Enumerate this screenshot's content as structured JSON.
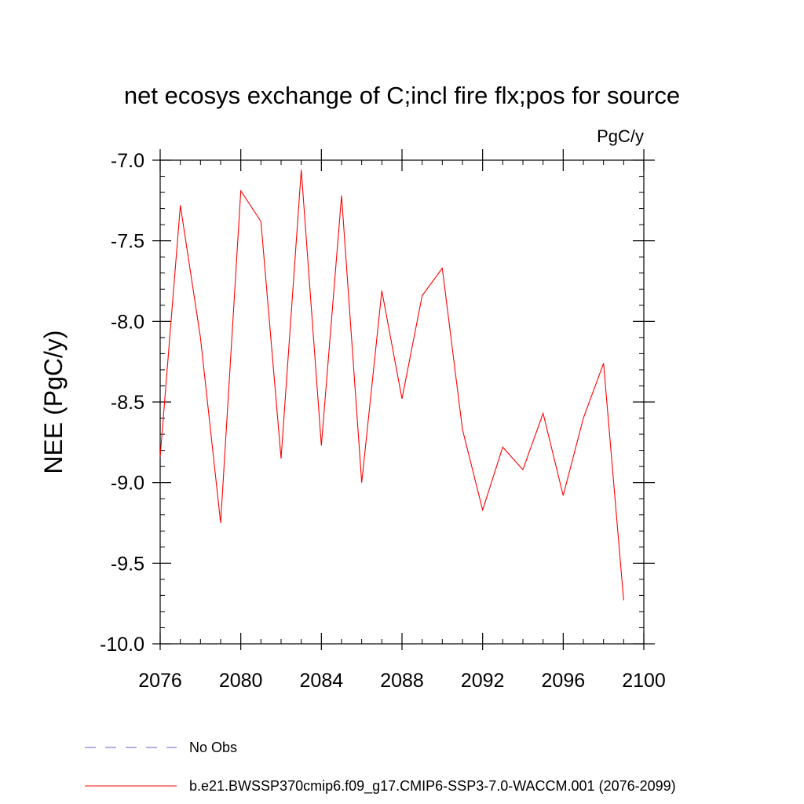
{
  "chart_data": {
    "type": "line",
    "title": "net ecosys exchange of C;incl fire flx;pos for source",
    "units_label": "PgC/y",
    "ylabel": "NEE  (PgC/y)",
    "xlabel": "",
    "xlim": [
      2076,
      2100
    ],
    "ylim": [
      -10.0,
      -7.0
    ],
    "x_ticks": [
      2076,
      2080,
      2084,
      2088,
      2092,
      2096,
      2100
    ],
    "x_tick_labels": [
      "2076",
      "2080",
      "2084",
      "2088",
      "2092",
      "2096",
      "2100"
    ],
    "y_ticks": [
      -7.0,
      -7.5,
      -8.0,
      -8.5,
      -9.0,
      -9.5,
      -10.0
    ],
    "y_tick_labels": [
      "-7.0",
      "-7.5",
      "-8.0",
      "-8.5",
      "-9.0",
      "-9.5",
      "-10.0"
    ],
    "grid": false,
    "legend_placement": "bottom-left",
    "series": [
      {
        "name": "b.e21.BWSSP370cmip6.f09_g17.CMIP6-SSP3-7.0-WACCM.001 (2076-2099)",
        "color": "#ff0000",
        "style": "solid",
        "x": [
          2076,
          2077,
          2078,
          2079,
          2080,
          2081,
          2082,
          2083,
          2084,
          2085,
          2086,
          2087,
          2088,
          2089,
          2090,
          2091,
          2092,
          2093,
          2094,
          2095,
          2096,
          2097,
          2098,
          2099
        ],
        "values": [
          -8.84,
          -7.28,
          -8.1,
          -9.25,
          -7.19,
          -7.38,
          -8.85,
          -7.06,
          -8.77,
          -7.22,
          -9.0,
          -7.81,
          -8.48,
          -7.84,
          -7.67,
          -8.67,
          -9.17,
          -8.78,
          -8.92,
          -8.57,
          -9.08,
          -8.6,
          -8.26,
          -9.73
        ]
      },
      {
        "name": "No Obs",
        "color": "#6a5acd",
        "style": "dashed",
        "x": [],
        "values": []
      }
    ]
  }
}
